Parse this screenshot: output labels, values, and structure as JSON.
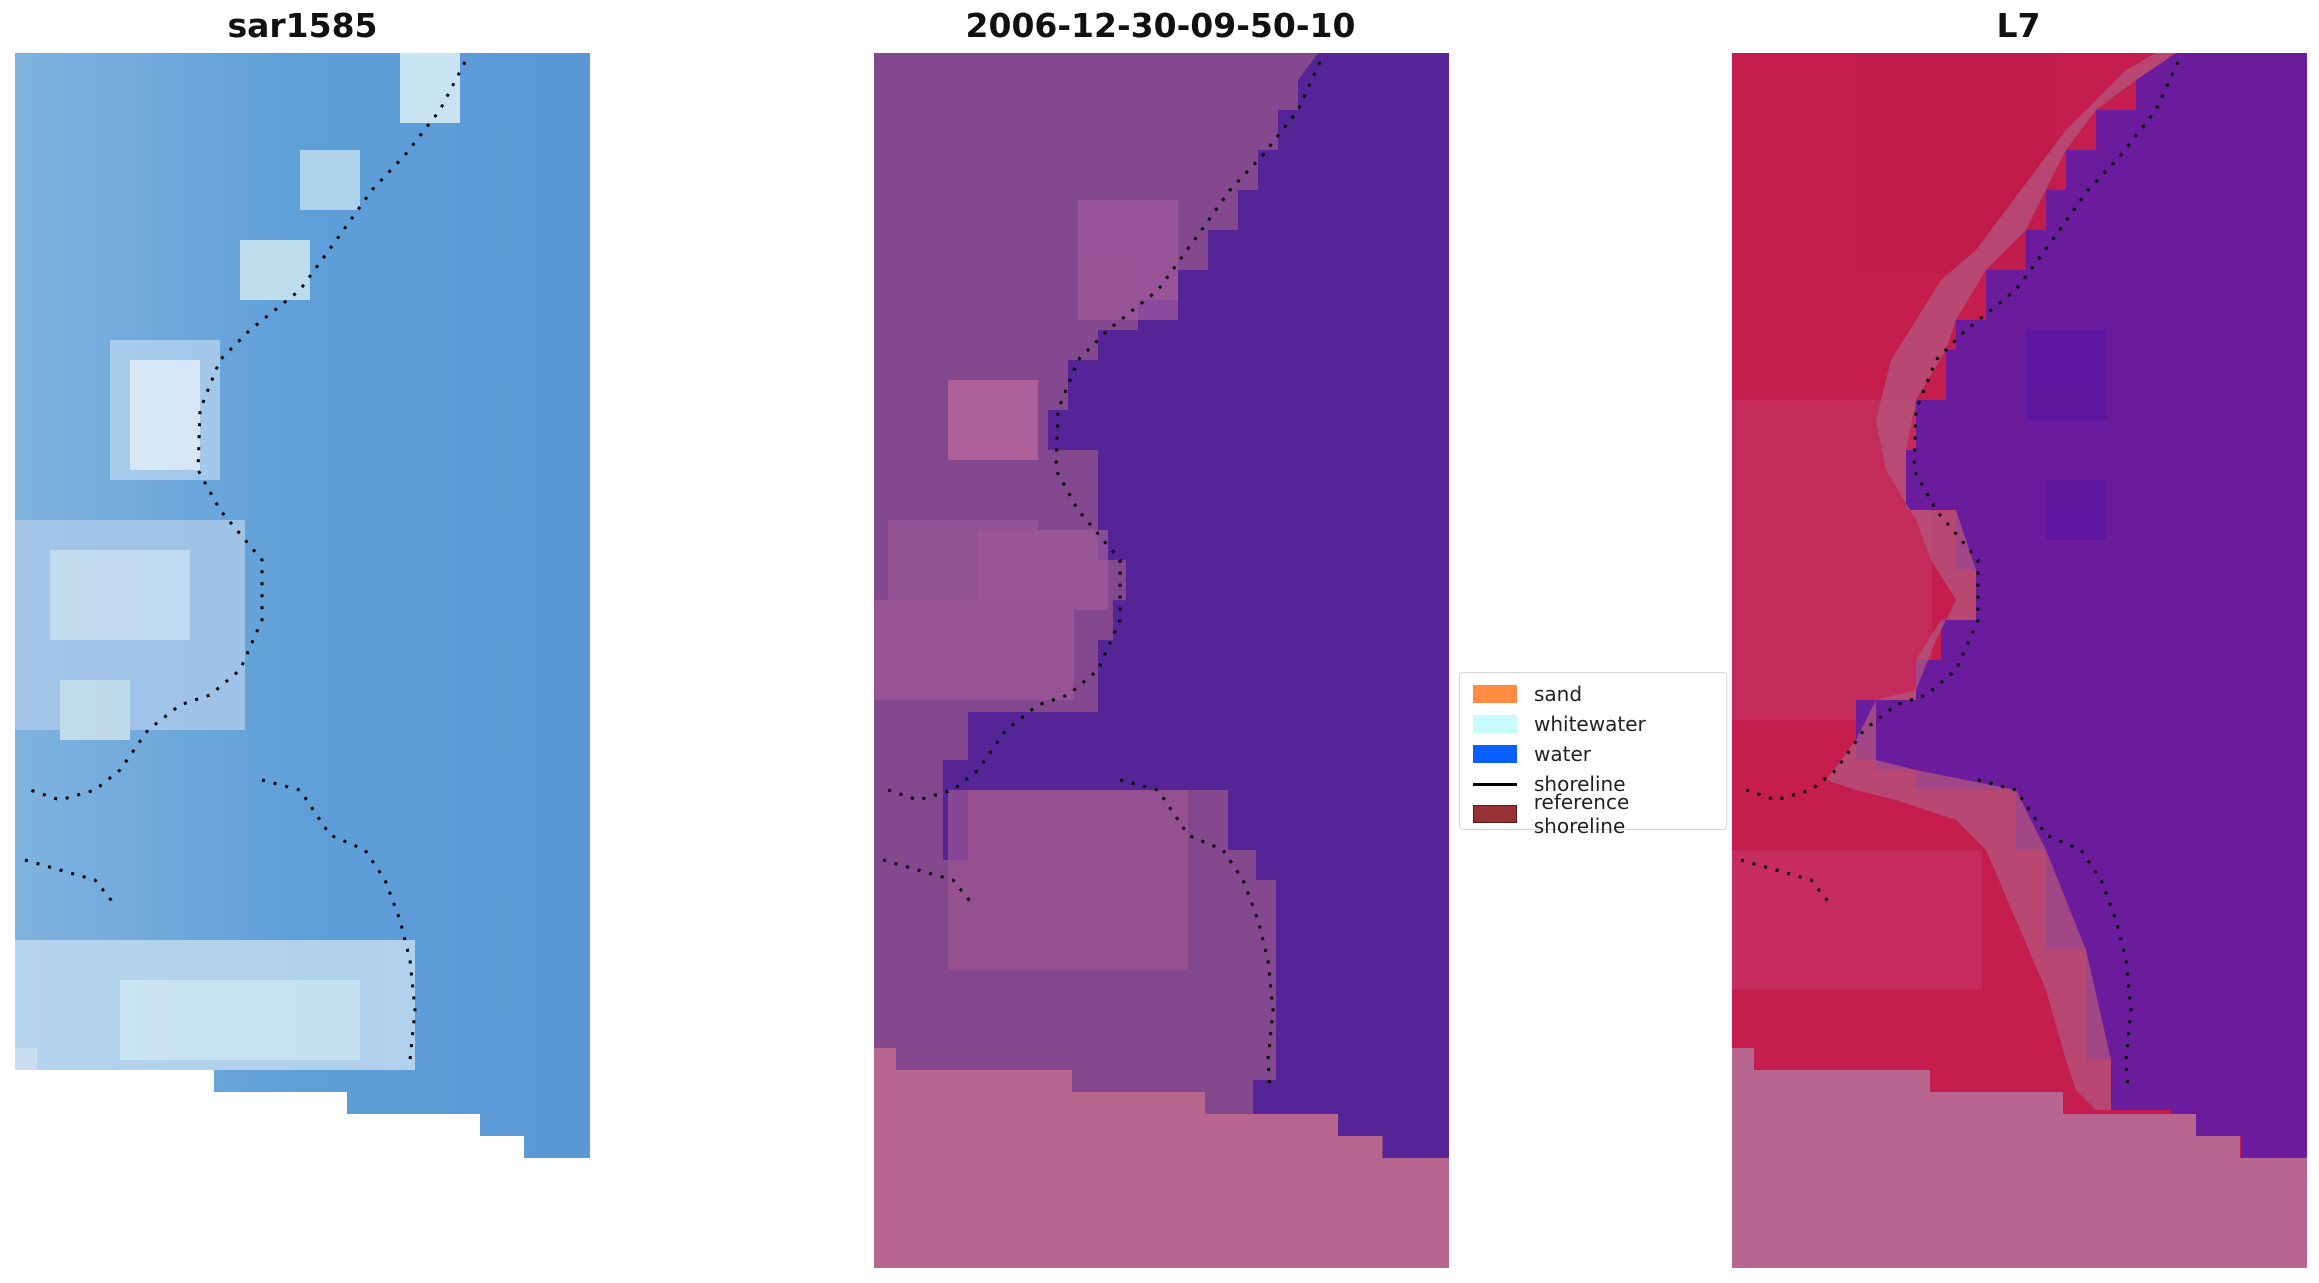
{
  "panels": [
    {
      "title": "sar1585"
    },
    {
      "title": "2006-12-30-09-50-10"
    },
    {
      "title": "L7"
    }
  ],
  "legend": {
    "items": [
      {
        "label": "sand",
        "color": "#ff8c40",
        "kind": "patch"
      },
      {
        "label": "whitewater",
        "color": "#c6fbff",
        "kind": "patch"
      },
      {
        "label": "water",
        "color": "#0a5fff",
        "kind": "patch"
      },
      {
        "label": "shoreline",
        "color": "#000000",
        "kind": "line"
      },
      {
        "label": "reference shoreline",
        "color": "#963235",
        "kind": "patch"
      }
    ]
  },
  "colors": {
    "rgb_water": "#5b9fd8",
    "rgb_whitewater": "#e6f4fb",
    "classified_land": "#84488f",
    "classified_water": "#552597",
    "classified_sand": "#b8668f",
    "mndwi_land": "#c41d4e",
    "mndwi_water": "#6b1c9d",
    "mndwi_nodata": "#b8668f"
  }
}
